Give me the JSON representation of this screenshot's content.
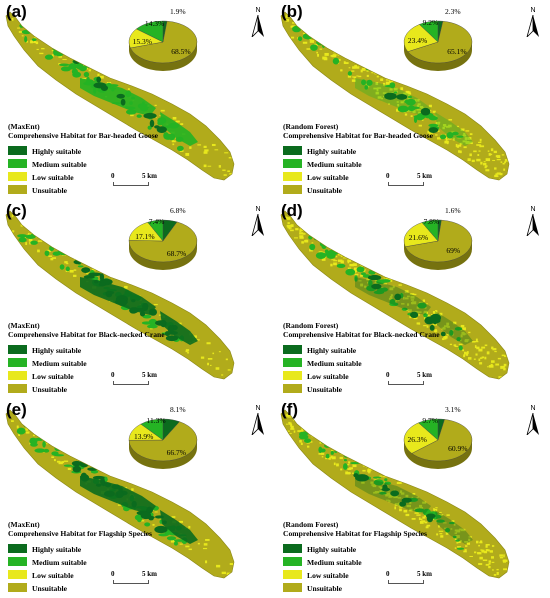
{
  "legend": {
    "items": [
      {
        "label": "Highly suitable",
        "color": "#0b6b1e"
      },
      {
        "label": "Medium suitable",
        "color": "#25b324"
      },
      {
        "label": "Low suitable",
        "color": "#e8e81c"
      },
      {
        "label": "Unsuitable",
        "color": "#b1ab1b"
      }
    ]
  },
  "scale": {
    "start": "0",
    "end": "5 km"
  },
  "north_label": "N",
  "panels": [
    {
      "label": "(a)",
      "method": "(MaxEnt)",
      "title": "Comprehensive Habitat for Bar-headed Goose",
      "pie": {
        "highly": "1.9%",
        "medium": "14.3%",
        "low": "15.3%",
        "unsuitable": "68.5%",
        "values": [
          1.9,
          14.3,
          15.3,
          68.5
        ]
      }
    },
    {
      "label": "(b)",
      "method": "(Random Forest)",
      "title": "Comprehensive Habitat for Bar-headed Goose",
      "pie": {
        "highly": "2.3%",
        "medium": "9.2%",
        "low": "23.4%",
        "unsuitable": "65.1%",
        "values": [
          2.3,
          9.2,
          23.4,
          65.1
        ]
      }
    },
    {
      "label": "(c)",
      "method": "(MaxEnt)",
      "title": "Comprehensive Habitat for Black-necked Crane",
      "pie": {
        "highly": "6.8%",
        "medium": "7.4%",
        "low": "17.1%",
        "unsuitable": "68.7%",
        "values": [
          6.8,
          7.4,
          17.1,
          68.7
        ]
      }
    },
    {
      "label": "(d)",
      "method": "(Random Forest)",
      "title": "Comprehensive Habitat for Black-necked Crane",
      "pie": {
        "highly": "1.6%",
        "medium": "7.8%",
        "low": "21.6%",
        "unsuitable": "69%",
        "values": [
          1.6,
          7.8,
          21.6,
          69
        ]
      }
    },
    {
      "label": "(e)",
      "method": "(MaxEnt)",
      "title": "Comprehensive Habitat for Flagship Species",
      "pie": {
        "highly": "8.1%",
        "medium": "11.3%",
        "low": "13.9%",
        "unsuitable": "66.7%",
        "values": [
          8.1,
          11.3,
          13.9,
          66.7
        ]
      }
    },
    {
      "label": "(f)",
      "method": "(Random Forest)",
      "title": "Comprehensive Habitat for Flagship Species",
      "pie": {
        "highly": "3.1%",
        "medium": "9.7%",
        "low": "26.3%",
        "unsuitable": "60.9%",
        "values": [
          3.1,
          9.7,
          26.3,
          60.9
        ]
      }
    }
  ]
}
